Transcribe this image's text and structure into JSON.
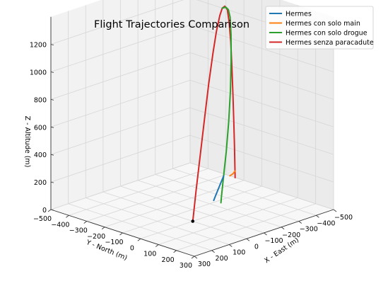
{
  "chart_data": {
    "type": "line3d",
    "title": "Flight Trajectories Comparison",
    "xlabel": "X - East (m)",
    "ylabel": "Y - North (m)",
    "zlabel": "Z - Altitude (m)",
    "xlim": [
      -500,
      300
    ],
    "ylim": [
      -500,
      300
    ],
    "zlim": [
      0,
      1400
    ],
    "x_ticks": [
      "-500",
      "-400",
      "-300",
      "-200",
      "-100",
      "0",
      "100",
      "200",
      "300"
    ],
    "y_ticks": [
      "-500",
      "-400",
      "-300",
      "-200",
      "-100",
      "0",
      "100",
      "200",
      "300"
    ],
    "z_ticks": [
      "0",
      "200",
      "400",
      "600",
      "800",
      "1000",
      "1200"
    ],
    "grid": true,
    "legend_position": "top-right",
    "colors": {
      "Hermes": "#1f77b4",
      "Hermes con solo main": "#ff7f0e",
      "Hermes con solo drogue": "#2ca02c",
      "Hermes senza paracadute": "#d62728"
    },
    "launch_point": {
      "x": 0,
      "y": 0,
      "z": 0
    },
    "series": [
      {
        "name": "Hermes senza paracadute",
        "color": "#d62728",
        "points": [
          [
            0,
            0,
            0
          ],
          [
            -40,
            -20,
            200
          ],
          [
            -90,
            -45,
            430
          ],
          [
            -140,
            -70,
            660
          ],
          [
            -190,
            -95,
            880
          ],
          [
            -240,
            -120,
            1070
          ],
          [
            -280,
            -140,
            1200
          ],
          [
            -320,
            -160,
            1290
          ],
          [
            -350,
            -175,
            1325
          ],
          [
            -380,
            -190,
            1320
          ],
          [
            -405,
            -200,
            1280
          ],
          [
            -425,
            -210,
            1180
          ],
          [
            -445,
            -220,
            1020
          ],
          [
            -460,
            -228,
            820
          ],
          [
            -472,
            -234,
            620
          ],
          [
            -482,
            -239,
            420
          ],
          [
            -490,
            -243,
            230
          ],
          [
            -496,
            -246,
            50
          ],
          [
            -498,
            -247,
            0
          ]
        ]
      },
      {
        "name": "Hermes con solo drogue",
        "color": "#2ca02c",
        "points": [
          [
            -350,
            -175,
            1325
          ],
          [
            -375,
            -180,
            1320
          ],
          [
            -390,
            -180,
            1295
          ],
          [
            -395,
            -175,
            1240
          ],
          [
            -390,
            -165,
            1120
          ],
          [
            -375,
            -150,
            940
          ],
          [
            -350,
            -130,
            740
          ],
          [
            -320,
            -110,
            540
          ],
          [
            -290,
            -95,
            340
          ],
          [
            -265,
            -85,
            180
          ],
          [
            -245,
            -78,
            40
          ],
          [
            -240,
            -76,
            0
          ]
        ]
      },
      {
        "name": "Hermes",
        "color": "#1f77b4",
        "points": [
          [
            -265,
            -85,
            180
          ],
          [
            -255,
            -100,
            100
          ],
          [
            -245,
            -112,
            30
          ],
          [
            -240,
            -116,
            0
          ]
        ]
      },
      {
        "name": "Hermes con solo main",
        "color": "#ff7f0e",
        "points": [
          [
            -496,
            -246,
            50
          ],
          [
            -500,
            -262,
            20
          ],
          [
            -500,
            -278,
            0
          ]
        ]
      }
    ]
  }
}
